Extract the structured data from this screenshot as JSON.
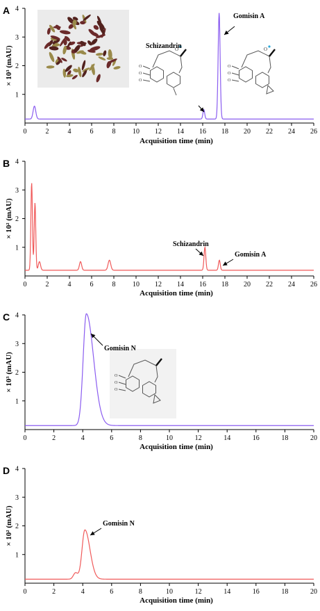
{
  "chart_data": [
    {
      "panel": "A",
      "type": "line",
      "xlabel": "Acquisition time (min)",
      "ylabel": "× 10³ (mAU)",
      "xlim": [
        0,
        26
      ],
      "ylim": [
        0,
        4
      ],
      "xticks": [
        0,
        2,
        4,
        6,
        8,
        10,
        12,
        14,
        16,
        18,
        20,
        22,
        24,
        26
      ],
      "yticks": [
        1,
        2,
        3,
        4
      ],
      "color": "#8a5cf0",
      "baseline": 0.14,
      "peaks": [
        {
          "x": 0.85,
          "y": 0.45,
          "w": 0.12
        },
        {
          "x": 16.1,
          "y": 0.33,
          "w": 0.08
        },
        {
          "x": 17.48,
          "y": 3.7,
          "w": 0.09
        }
      ],
      "annotations": [
        {
          "text": "Schizandrin",
          "peak_x": 16.1
        },
        {
          "text": "Gomisin A",
          "peak_x": 17.48
        }
      ],
      "has_photo": true,
      "structures": 2
    },
    {
      "panel": "B",
      "type": "line",
      "xlabel": "Acquisition time (min)",
      "ylabel": "× 10² (mAU)",
      "xlim": [
        0,
        26
      ],
      "ylim": [
        0,
        4
      ],
      "xticks": [
        0,
        2,
        4,
        6,
        8,
        10,
        12,
        14,
        16,
        18,
        20,
        22,
        24,
        26
      ],
      "yticks": [
        1,
        2,
        3,
        4
      ],
      "color": "#f05a5a",
      "baseline": 0.2,
      "peaks": [
        {
          "x": 0.6,
          "y": 3.05,
          "w": 0.07
        },
        {
          "x": 0.9,
          "y": 2.35,
          "w": 0.07
        },
        {
          "x": 1.3,
          "y": 0.3,
          "w": 0.1
        },
        {
          "x": 5.0,
          "y": 0.3,
          "w": 0.1
        },
        {
          "x": 7.6,
          "y": 0.35,
          "w": 0.12
        },
        {
          "x": 16.2,
          "y": 0.8,
          "w": 0.08
        },
        {
          "x": 17.5,
          "y": 0.35,
          "w": 0.08
        }
      ],
      "annotations": [
        {
          "text": "Schizandrin",
          "peak_x": 16.2
        },
        {
          "text": "Gomisin A",
          "peak_x": 17.5
        }
      ],
      "has_photo": false,
      "structures": 0
    },
    {
      "panel": "C",
      "type": "line",
      "xlabel": "Acquisition time (min)",
      "ylabel": "× 10³ (mAU)",
      "xlim": [
        0,
        20
      ],
      "ylim": [
        0,
        4
      ],
      "xticks": [
        0,
        2,
        4,
        6,
        8,
        10,
        12,
        14,
        16,
        18,
        20
      ],
      "yticks": [
        1,
        2,
        3,
        4
      ],
      "color": "#8a5cf0",
      "baseline": 0.14,
      "peaks": [
        {
          "x": 4.25,
          "y": 3.9,
          "w": 0.22,
          "tail": 0.5
        }
      ],
      "annotations": [
        {
          "text": "Gomisin N",
          "peak_x": 4.25
        }
      ],
      "has_photo": false,
      "structures": 1
    },
    {
      "panel": "D",
      "type": "line",
      "xlabel": "Acquisition time (min)",
      "ylabel": "× 10² (mAU)",
      "xlim": [
        0,
        20
      ],
      "ylim": [
        0,
        4
      ],
      "xticks": [
        0,
        2,
        4,
        6,
        8,
        10,
        12,
        14,
        16,
        18,
        20
      ],
      "yticks": [
        1,
        2,
        3,
        4
      ],
      "color": "#f05a5a",
      "baseline": 0.14,
      "peaks": [
        {
          "x": 3.5,
          "y": 0.22,
          "w": 0.15
        },
        {
          "x": 4.15,
          "y": 1.72,
          "w": 0.2,
          "tail": 0.35
        }
      ],
      "annotations": [
        {
          "text": "Gomisin N",
          "peak_x": 4.15
        }
      ],
      "has_photo": false,
      "structures": 0
    }
  ]
}
